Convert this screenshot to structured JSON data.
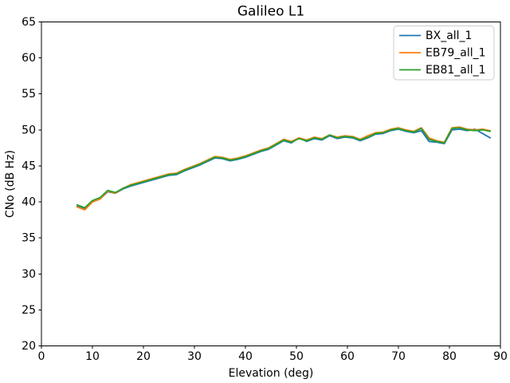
{
  "figure": {
    "background": "#ffffff"
  },
  "chart_data": {
    "type": "line",
    "title": "Galileo L1",
    "xlabel": "Elevation (deg)",
    "ylabel": "CNo (dB Hz)",
    "xlim": [
      0,
      90
    ],
    "ylim": [
      20,
      65
    ],
    "xticks": [
      0,
      10,
      20,
      30,
      40,
      50,
      60,
      70,
      80,
      90
    ],
    "yticks": [
      20,
      25,
      30,
      35,
      40,
      45,
      50,
      55,
      60,
      65
    ],
    "grid": false,
    "legend_position": "upper-right",
    "axis_color": "#000000",
    "legend_border_color": "#cccccc",
    "x": [
      7,
      8.5,
      10,
      11.5,
      13,
      14.5,
      16,
      17.5,
      19,
      20.5,
      22,
      23.5,
      25,
      26.5,
      28,
      29.5,
      31,
      32.5,
      34,
      35.5,
      37,
      38.5,
      40,
      41.5,
      43,
      44.5,
      46,
      47.5,
      49,
      50.5,
      52,
      53.5,
      55,
      56.5,
      58,
      59.5,
      61,
      62.5,
      64,
      65.5,
      67,
      68.5,
      70,
      71.5,
      73,
      74.5,
      76,
      77.5,
      79,
      80.5,
      82,
      83.5,
      85,
      86.5,
      88
    ],
    "series": [
      {
        "name": "BX_all_1",
        "color": "#1f77b4",
        "values": [
          39.4,
          39.0,
          40.0,
          40.4,
          41.4,
          41.2,
          41.8,
          42.2,
          42.5,
          42.8,
          43.1,
          43.4,
          43.7,
          43.8,
          44.3,
          44.7,
          45.1,
          45.6,
          46.1,
          46.0,
          45.7,
          45.9,
          46.2,
          46.6,
          47.0,
          47.3,
          47.9,
          48.5,
          48.2,
          48.9,
          48.4,
          48.8,
          48.6,
          49.2,
          48.8,
          49.0,
          48.9,
          48.5,
          48.9,
          49.4,
          49.5,
          49.9,
          50.1,
          49.8,
          49.6,
          49.9,
          48.4,
          48.3,
          48.1,
          50.0,
          50.1,
          49.9,
          50.1,
          49.5,
          48.9
        ]
      },
      {
        "name": "EB79_all_1",
        "color": "#ff7f0e",
        "values": [
          39.3,
          38.9,
          40.0,
          40.4,
          41.5,
          41.2,
          41.9,
          42.4,
          42.7,
          43.0,
          43.3,
          43.6,
          43.9,
          44.0,
          44.5,
          44.9,
          45.3,
          45.8,
          46.3,
          46.2,
          45.9,
          46.1,
          46.4,
          46.8,
          47.2,
          47.5,
          48.1,
          48.7,
          48.4,
          48.9,
          48.6,
          49.0,
          48.8,
          49.3,
          49.0,
          49.2,
          49.1,
          48.7,
          49.2,
          49.6,
          49.7,
          50.1,
          50.3,
          50.0,
          49.8,
          50.3,
          48.9,
          48.5,
          48.3,
          50.3,
          50.4,
          50.1,
          50.0,
          50.1,
          49.9
        ]
      },
      {
        "name": "EB81_all_1",
        "color": "#2ca02c",
        "values": [
          39.6,
          39.2,
          40.2,
          40.6,
          41.6,
          41.3,
          41.9,
          42.3,
          42.6,
          42.9,
          43.2,
          43.5,
          43.8,
          43.9,
          44.4,
          44.8,
          45.2,
          45.7,
          46.2,
          46.1,
          45.8,
          46.0,
          46.3,
          46.7,
          47.1,
          47.4,
          48.0,
          48.6,
          48.3,
          48.8,
          48.5,
          48.9,
          48.7,
          49.3,
          48.9,
          49.1,
          49.0,
          48.6,
          49.0,
          49.5,
          49.6,
          50.0,
          50.2,
          49.9,
          49.7,
          50.2,
          48.7,
          48.4,
          48.2,
          50.2,
          50.3,
          50.0,
          49.9,
          50.0,
          49.8
        ]
      }
    ]
  }
}
